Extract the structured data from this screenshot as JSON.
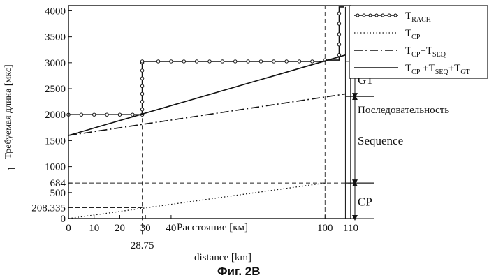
{
  "chart_data": {
    "type": "line",
    "title": "",
    "xlabel": "Расстояние [км]",
    "xlabel_secondary": "distance [km]",
    "ylabel": "Требуемая длина [мкс]",
    "ylabel_prefix": "]",
    "caption": "Фиг. 2B",
    "xlim": [
      0,
      110
    ],
    "ylim": [
      0,
      4100
    ],
    "x_ticks": [
      {
        "value": 0,
        "label": "0"
      },
      {
        "value": 10,
        "label": "10"
      },
      {
        "value": 20,
        "label": "20"
      },
      {
        "value": 30,
        "label": "30"
      },
      {
        "value": 40,
        "label": "40"
      },
      {
        "value": 100,
        "label": "100"
      },
      {
        "value": 110,
        "label": "110"
      }
    ],
    "x_extra_tick": {
      "value": 28.75,
      "label": "28.75"
    },
    "y_ticks": [
      {
        "value": 0,
        "label": "0"
      },
      {
        "value": 500,
        "label": "500"
      },
      {
        "value": 684,
        "label": "684"
      },
      {
        "value": 1000,
        "label": "1000"
      },
      {
        "value": 1500,
        "label": "1500"
      },
      {
        "value": 2000,
        "label": "2000"
      },
      {
        "value": 2500,
        "label": "2500"
      },
      {
        "value": 3000,
        "label": "3000"
      },
      {
        "value": 3500,
        "label": "3500"
      },
      {
        "value": 4000,
        "label": "4000"
      }
    ],
    "y_extra_tick": {
      "value": 208.335,
      "label": "208.335"
    },
    "series": [
      {
        "name": "T_RACH",
        "legend_main": "T",
        "legend_sub": "RACH",
        "style": "marker-line",
        "x": [
          0,
          28.75,
          28.75,
          100,
          100,
          105.5,
          105.5,
          107.5
        ],
        "y": [
          2000,
          2000,
          3025,
          3025,
          3050,
          3050,
          4075,
          4075
        ],
        "markers_x": [
          0,
          5,
          10,
          15,
          20,
          25,
          28.75,
          28.75,
          28.75,
          28.75,
          28.75,
          28.75,
          28.75,
          28.75,
          28.75,
          35,
          40,
          45,
          50,
          55,
          60,
          65,
          70,
          75,
          80,
          85,
          90,
          95,
          100,
          105.5,
          105.5,
          105.5,
          105.5,
          105.5
        ],
        "markers_y": [
          2000,
          2000,
          2000,
          2000,
          2000,
          2000,
          2000,
          2100,
          2250,
          2400,
          2550,
          2700,
          2850,
          3000,
          3025,
          3025,
          3025,
          3025,
          3025,
          3025,
          3025,
          3025,
          3025,
          3025,
          3025,
          3025,
          3025,
          3025,
          3050,
          3150,
          3350,
          3550,
          3750,
          3950
        ]
      },
      {
        "name": "T_CP",
        "legend_main": "T",
        "legend_sub": "CP",
        "style": "dotted",
        "x": [
          0,
          100
        ],
        "y": [
          0,
          684
        ]
      },
      {
        "name": "T_CP+T_SEQ",
        "legend_parts": [
          "T",
          "CP",
          "+T",
          "SEQ"
        ],
        "style": "dash-dot",
        "x": [
          0,
          108
        ],
        "y": [
          1600,
          2400
        ]
      },
      {
        "name": "T_CP+T_SEQ+T_GT",
        "legend_parts": [
          "T",
          "CP",
          " +T",
          "SEQ",
          "+T",
          "GT"
        ],
        "style": "solid",
        "x": [
          0,
          108
        ],
        "y": [
          1600,
          3150
        ]
      }
    ],
    "reference_lines": [
      {
        "orientation": "horizontal",
        "value": 684,
        "from_x": 0,
        "to_x": 110,
        "style": "dashed"
      },
      {
        "orientation": "horizontal",
        "value": 208.335,
        "from_x": 0,
        "to_x": 28.75,
        "style": "dashed"
      },
      {
        "orientation": "vertical",
        "value": 28.75,
        "from_y": -300,
        "to_y": 3025,
        "style": "dashed"
      },
      {
        "orientation": "vertical",
        "value": 100,
        "from_y": 0,
        "to_y": 4100,
        "style": "dashed"
      },
      {
        "orientation": "vertical",
        "value": 108,
        "from_y": 0,
        "to_y": 4075,
        "style": "solid"
      }
    ],
    "brackets": [
      {
        "label": "GT",
        "from": 3025,
        "to": 2350
      },
      {
        "label": "Sequence",
        "from": 2350,
        "to": 684
      },
      {
        "label": "CP",
        "from": 684,
        "to": 0
      }
    ],
    "bracket_extra_label": "Последовательность",
    "legend_position": "top-right"
  }
}
